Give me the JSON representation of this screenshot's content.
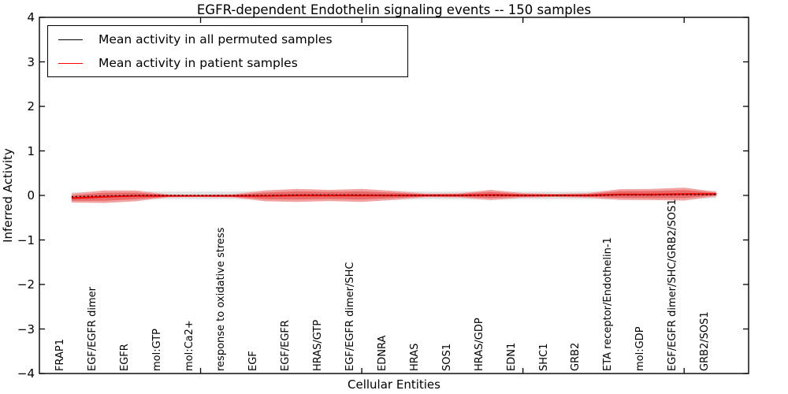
{
  "title": "EGFR-dependent Endothelin signaling events -- 150 samples",
  "legend": {
    "position": "upper left",
    "items": [
      {
        "label": "Mean activity in all permuted samples",
        "color": "#000000"
      },
      {
        "label": "Mean activity in patient samples",
        "color": "#ff0000"
      }
    ]
  },
  "axes": {
    "x_label": "Cellular Entities",
    "y_label": "Inferred Activity",
    "y_ticks": [
      {
        "value": 4,
        "label": "4"
      },
      {
        "value": 3,
        "label": "3"
      },
      {
        "value": 2,
        "label": "2"
      },
      {
        "value": 1,
        "label": "1"
      },
      {
        "value": 0,
        "label": "0"
      },
      {
        "value": -1,
        "label": "−1"
      },
      {
        "value": -2,
        "label": "−2"
      },
      {
        "value": -3,
        "label": "−3"
      },
      {
        "value": -4,
        "label": "−4"
      }
    ],
    "x_major_tick_positions": [
      5,
      10,
      15,
      20
    ]
  },
  "chart_data": {
    "type": "line",
    "title": "EGFR-dependent Endothelin signaling events -- 150 samples",
    "xlabel": "Cellular Entities",
    "ylabel": "Inferred Activity",
    "xlim": [
      0,
      22
    ],
    "ylim": [
      -4,
      4
    ],
    "grid": false,
    "legend_position": "upper left",
    "categories": [
      "FRAP1",
      "EGF/EGFR dimer",
      "EGFR",
      "mol:GTP",
      "mol:Ca2+",
      "response to oxidative stress",
      "EGF",
      "EGF/EGFR",
      "HRAS/GTP",
      "EGF/EGFR dimer/SHC",
      "EDNRA",
      "HRAS",
      "SOS1",
      "HRAS/GDP",
      "EDN1",
      "SHC1",
      "GRB2",
      "ETA receptor/Endothelin-1",
      "mol:GDP",
      "EGF/EGFR dimer/SHC/GRB2/SOS1",
      "GRB2/SOS1"
    ],
    "series": [
      {
        "name": "Mean activity in all permuted samples",
        "color": "#000000",
        "style": "dotted",
        "values": [
          -0.03,
          -0.01,
          0,
          0,
          0,
          0,
          0,
          0.01,
          0.01,
          0.01,
          0,
          0,
          0,
          0,
          0,
          0,
          0,
          0.01,
          0.01,
          0.02,
          0.02
        ]
      },
      {
        "name": "Mean activity in patient samples",
        "color": "#ff0000",
        "style": "solid",
        "values": [
          -0.06,
          -0.03,
          -0.01,
          -0.01,
          -0.01,
          -0.01,
          -0.01,
          0,
          0,
          0,
          0,
          0,
          0,
          0.01,
          0,
          0,
          0,
          0.02,
          0.02,
          0.03,
          0.03
        ]
      }
    ],
    "bands": [
      {
        "name": "permuted-samples-range",
        "color": "#e0e0e0",
        "center_series": 0,
        "half_widths": [
          0.1,
          0.1,
          0.09,
          0.085,
          0.085,
          0.085,
          0.1,
          0.11,
          0.105,
          0.11,
          0.1,
          0.085,
          0.085,
          0.1,
          0.085,
          0.085,
          0.085,
          0.1,
          0.105,
          0.11,
          0.08
        ]
      },
      {
        "name": "patient-samples-outer-range",
        "color": "#f2a0a0",
        "center_series": 1,
        "half_widths": [
          0.1,
          0.14,
          0.12,
          0.03,
          0.025,
          0.035,
          0.12,
          0.145,
          0.125,
          0.145,
          0.1,
          0.04,
          0.045,
          0.115,
          0.05,
          0.035,
          0.05,
          0.12,
          0.125,
          0.145,
          0.05
        ]
      },
      {
        "name": "patient-samples-inner-range",
        "color": "#e86a6a",
        "center_series": 1,
        "half_widths": [
          0.06,
          0.09,
          0.075,
          0.02,
          0.015,
          0.02,
          0.075,
          0.09,
          0.08,
          0.09,
          0.06,
          0.025,
          0.03,
          0.07,
          0.03,
          0.02,
          0.03,
          0.075,
          0.08,
          0.09,
          0.03
        ]
      }
    ]
  }
}
